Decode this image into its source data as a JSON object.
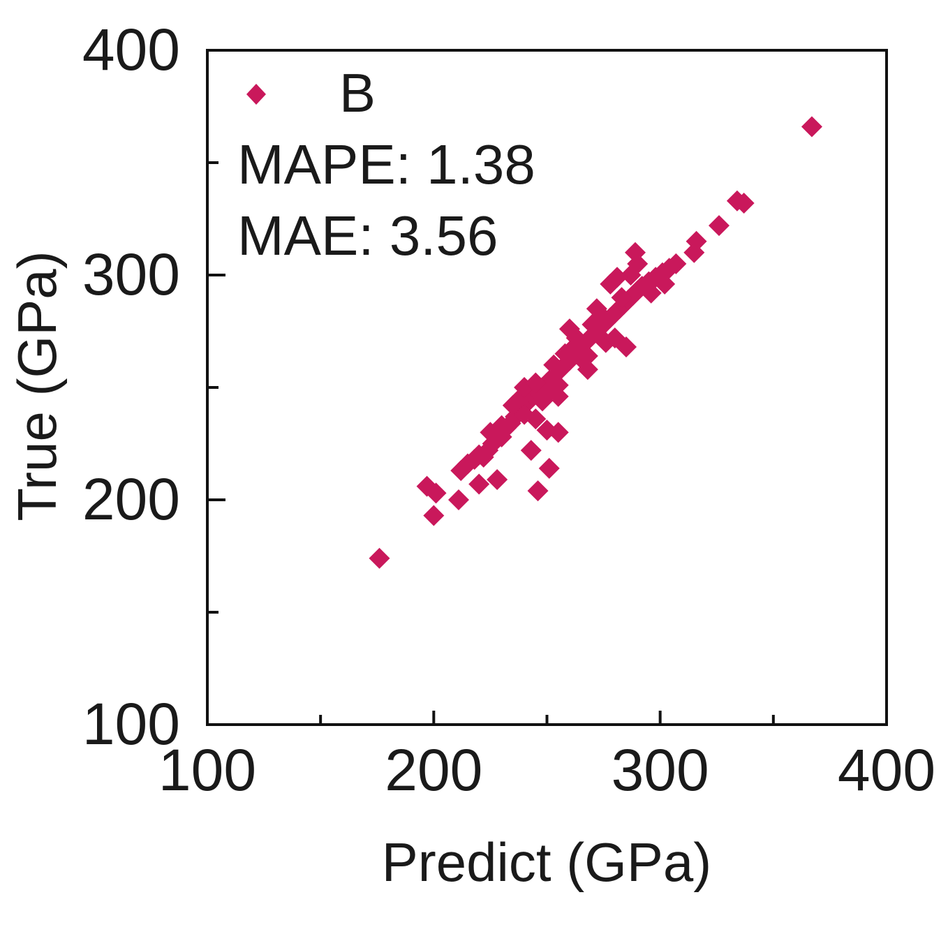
{
  "chart_data": {
    "type": "scatter",
    "title": "",
    "xlabel": "Predict (GPa)",
    "ylabel": "True (GPa)",
    "xlim": [
      100,
      400
    ],
    "ylim": [
      100,
      400
    ],
    "x_ticks": [
      100,
      200,
      300,
      400
    ],
    "y_ticks": [
      100,
      200,
      300,
      400
    ],
    "x_tick_labels": [
      "100",
      "200",
      "300",
      "400"
    ],
    "y_tick_labels": [
      "100",
      "200",
      "300",
      "400"
    ],
    "grid": false,
    "legend": {
      "position": "top-left",
      "entries": [
        "B"
      ]
    },
    "annotations": [
      "MAPE: 1.38",
      "MAE: 3.56"
    ],
    "series": [
      {
        "name": "B",
        "color": "#C9185B",
        "marker": "diamond",
        "points": [
          [
            176,
            174
          ],
          [
            197,
            206
          ],
          [
            201,
            203
          ],
          [
            200,
            193
          ],
          [
            211,
            200
          ],
          [
            220,
            207
          ],
          [
            228,
            209
          ],
          [
            246,
            204
          ],
          [
            251,
            214
          ],
          [
            243,
            222
          ],
          [
            255,
            230
          ],
          [
            250,
            231
          ],
          [
            212,
            213
          ],
          [
            215,
            216
          ],
          [
            218,
            218
          ],
          [
            220,
            220
          ],
          [
            222,
            219
          ],
          [
            224,
            222
          ],
          [
            226,
            225
          ],
          [
            228,
            227
          ],
          [
            230,
            228
          ],
          [
            232,
            232
          ],
          [
            234,
            234
          ],
          [
            236,
            237
          ],
          [
            238,
            240
          ],
          [
            240,
            242
          ],
          [
            242,
            244
          ],
          [
            244,
            246
          ],
          [
            246,
            248
          ],
          [
            248,
            250
          ],
          [
            250,
            252
          ],
          [
            252,
            254
          ],
          [
            254,
            256
          ],
          [
            256,
            258
          ],
          [
            258,
            260
          ],
          [
            260,
            262
          ],
          [
            262,
            264
          ],
          [
            264,
            267
          ],
          [
            266,
            269
          ],
          [
            268,
            271
          ],
          [
            270,
            273
          ],
          [
            272,
            275
          ],
          [
            274,
            277
          ],
          [
            276,
            279
          ],
          [
            278,
            281
          ],
          [
            280,
            283
          ],
          [
            282,
            285
          ],
          [
            284,
            287
          ],
          [
            286,
            289
          ],
          [
            288,
            291
          ],
          [
            290,
            293
          ],
          [
            292,
            295
          ],
          [
            295,
            297
          ],
          [
            298,
            299
          ],
          [
            301,
            301
          ],
          [
            304,
            303
          ],
          [
            307,
            305
          ],
          [
            237,
            244
          ],
          [
            240,
            250
          ],
          [
            245,
            252
          ],
          [
            250,
            247
          ],
          [
            255,
            251
          ],
          [
            258,
            265
          ],
          [
            262,
            268
          ],
          [
            265,
            263
          ],
          [
            268,
            264
          ],
          [
            270,
            278
          ],
          [
            274,
            282
          ],
          [
            276,
            270
          ],
          [
            280,
            272
          ],
          [
            283,
            290
          ],
          [
            287,
            300
          ],
          [
            290,
            305
          ],
          [
            289,
            310
          ],
          [
            285,
            268
          ],
          [
            278,
            296
          ],
          [
            268,
            258
          ],
          [
            260,
            276
          ],
          [
            255,
            246
          ],
          [
            245,
            236
          ],
          [
            235,
            242
          ],
          [
            230,
            233
          ],
          [
            225,
            230
          ],
          [
            240,
            238
          ],
          [
            248,
            244
          ],
          [
            253,
            260
          ],
          [
            263,
            272
          ],
          [
            272,
            285
          ],
          [
            281,
            299
          ],
          [
            296,
            292
          ],
          [
            302,
            296
          ],
          [
            315,
            310
          ],
          [
            316,
            315
          ],
          [
            326,
            322
          ],
          [
            334,
            333
          ],
          [
            337,
            332
          ],
          [
            367,
            366
          ]
        ]
      }
    ]
  }
}
